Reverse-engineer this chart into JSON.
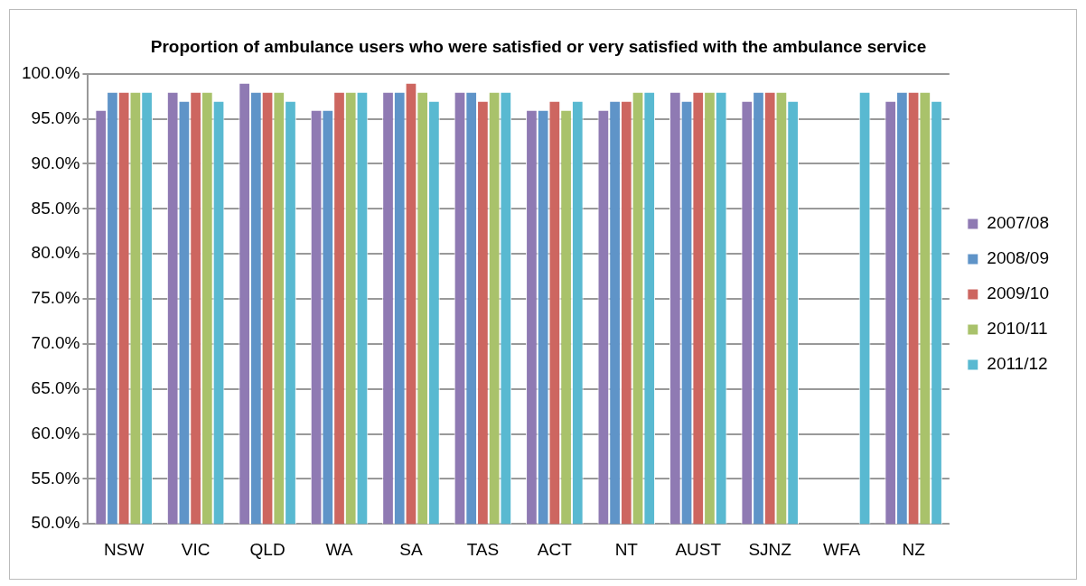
{
  "chart_data": {
    "type": "bar",
    "title": "Proportion of ambulance users who were satisfied or very satisfied with the ambulance service",
    "categories": [
      "NSW",
      "VIC",
      "QLD",
      "WA",
      "SA",
      "TAS",
      "ACT",
      "NT",
      "AUST",
      "SJNZ",
      "WFA",
      "NZ"
    ],
    "series": [
      {
        "name": "2007/08",
        "color": "#8f7ab3",
        "values": [
          96,
          98,
          99,
          96,
          98,
          98,
          96,
          96,
          98,
          97,
          null,
          97
        ]
      },
      {
        "name": "2008/09",
        "color": "#5f94c8",
        "values": [
          98,
          97,
          98,
          96,
          98,
          98,
          96,
          97,
          97,
          98,
          null,
          98
        ]
      },
      {
        "name": "2009/10",
        "color": "#cd6660",
        "values": [
          98,
          98,
          98,
          98,
          99,
          97,
          97,
          97,
          98,
          98,
          null,
          98
        ]
      },
      {
        "name": "2010/11",
        "color": "#a9c26b",
        "values": [
          98,
          98,
          98,
          98,
          98,
          98,
          96,
          98,
          98,
          98,
          null,
          98
        ]
      },
      {
        "name": "2011/12",
        "color": "#59b9d1",
        "values": [
          98,
          97,
          97,
          98,
          97,
          98,
          97,
          98,
          98,
          97,
          98,
          97
        ]
      }
    ],
    "ylim": [
      50,
      100
    ],
    "yticks": [
      {
        "value": 50,
        "label": "50.0%"
      },
      {
        "value": 55,
        "label": "55.0%"
      },
      {
        "value": 60,
        "label": "60.0%"
      },
      {
        "value": 65,
        "label": "65.0%"
      },
      {
        "value": 70,
        "label": "70.0%"
      },
      {
        "value": 75,
        "label": "75.0%"
      },
      {
        "value": 80,
        "label": "80.0%"
      },
      {
        "value": 85,
        "label": "85.0%"
      },
      {
        "value": 90,
        "label": "90.0%"
      },
      {
        "value": 95,
        "label": "95.0%"
      },
      {
        "value": 100,
        "label": "100.0%"
      }
    ],
    "grid": "y",
    "legend": "right"
  }
}
